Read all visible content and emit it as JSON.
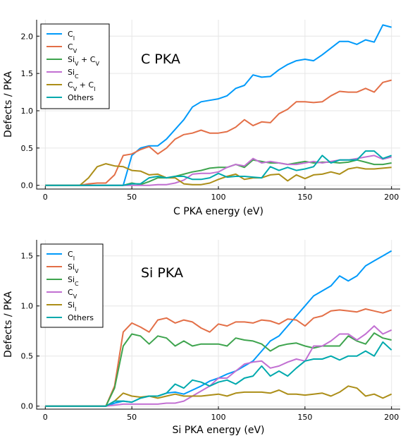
{
  "chart_data": [
    {
      "type": "line",
      "annotation": "C PKA",
      "xlabel": "C PKA energy (eV)",
      "ylabel": "Defects / PKA",
      "xlim": [
        -5,
        205
      ],
      "ylim": [
        -0.05,
        2.22
      ],
      "xticks": [
        0,
        50,
        100,
        150,
        200
      ],
      "yticks": [
        0.0,
        0.5,
        1.0,
        1.5,
        2.0
      ],
      "ytick_labels": [
        "0.0",
        "0.5",
        "1.0",
        "1.5",
        "2.0"
      ],
      "grid": true,
      "legend_position": "top-left",
      "x": [
        0,
        5,
        10,
        15,
        20,
        25,
        30,
        35,
        40,
        45,
        50,
        55,
        60,
        65,
        70,
        75,
        80,
        85,
        90,
        95,
        100,
        105,
        110,
        115,
        120,
        125,
        130,
        135,
        140,
        145,
        150,
        155,
        160,
        165,
        170,
        175,
        180,
        185,
        190,
        195,
        200
      ],
      "series": [
        {
          "name": "C",
          "sub": "I",
          "plus": "",
          "name2": "",
          "sub2": "",
          "color": "#009AFA",
          "values": [
            0,
            0,
            0,
            0,
            0,
            0,
            0,
            0,
            0,
            0,
            0.4,
            0.5,
            0.53,
            0.53,
            0.62,
            0.75,
            0.88,
            1.05,
            1.12,
            1.14,
            1.16,
            1.2,
            1.3,
            1.34,
            1.48,
            1.45,
            1.46,
            1.55,
            1.62,
            1.67,
            1.69,
            1.67,
            1.75,
            1.84,
            1.93,
            1.93,
            1.89,
            1.95,
            1.92,
            2.15,
            2.12
          ]
        },
        {
          "name": "C",
          "sub": "V",
          "plus": "",
          "name2": "",
          "sub2": "",
          "color": "#E36F47",
          "values": [
            0,
            0,
            0,
            0,
            0,
            0.02,
            0.03,
            0.03,
            0.14,
            0.4,
            0.42,
            0.48,
            0.52,
            0.42,
            0.5,
            0.62,
            0.68,
            0.7,
            0.74,
            0.7,
            0.7,
            0.72,
            0.78,
            0.88,
            0.8,
            0.85,
            0.84,
            0.96,
            1.02,
            1.12,
            1.12,
            1.11,
            1.12,
            1.2,
            1.26,
            1.25,
            1.25,
            1.3,
            1.25,
            1.38,
            1.41
          ]
        },
        {
          "name": "Si",
          "sub": "V",
          "plus": " + ",
          "name2": "C",
          "sub2": "V",
          "color": "#3EA44E",
          "values": [
            0,
            0,
            0,
            0,
            0,
            0,
            0,
            0,
            0,
            0,
            0.03,
            0.01,
            0.05,
            0.1,
            0.1,
            0.12,
            0.15,
            0.18,
            0.2,
            0.23,
            0.24,
            0.24,
            0.28,
            0.24,
            0.34,
            0.32,
            0.3,
            0.3,
            0.28,
            0.3,
            0.32,
            0.3,
            0.31,
            0.31,
            0.3,
            0.31,
            0.34,
            0.31,
            0.28,
            0.28,
            0.3
          ]
        },
        {
          "name": "Si",
          "sub": "C",
          "plus": "",
          "name2": "",
          "sub2": "",
          "color": "#C270D2",
          "values": [
            0,
            0,
            0,
            0,
            0,
            0,
            0,
            0,
            0,
            0,
            0,
            0,
            0,
            0.01,
            0.01,
            0.03,
            0.07,
            0.15,
            0.16,
            0.16,
            0.18,
            0.24,
            0.28,
            0.26,
            0.36,
            0.3,
            0.32,
            0.3,
            0.28,
            0.28,
            0.3,
            0.32,
            0.3,
            0.32,
            0.34,
            0.34,
            0.36,
            0.38,
            0.4,
            0.35,
            0.38
          ]
        },
        {
          "name": "C",
          "sub": "V",
          "plus": " + ",
          "name2": "C",
          "sub2": "I",
          "color": "#AC8E18",
          "values": [
            0,
            0,
            0,
            0,
            0,
            0.1,
            0.25,
            0.29,
            0.26,
            0.25,
            0.2,
            0.19,
            0.14,
            0.15,
            0.1,
            0.1,
            0.02,
            0.01,
            0.01,
            0.03,
            0.08,
            0.12,
            0.15,
            0.08,
            0.1,
            0.1,
            0.14,
            0.15,
            0.06,
            0.14,
            0.09,
            0.14,
            0.15,
            0.18,
            0.15,
            0.22,
            0.24,
            0.22,
            0.22,
            0.23,
            0.24
          ]
        },
        {
          "name": "Others",
          "sub": "",
          "plus": "",
          "name2": "",
          "sub2": "",
          "color": "#00A9AD",
          "values": [
            0,
            0,
            0,
            0,
            0,
            0,
            0,
            0,
            0,
            0,
            0.02,
            0.02,
            0.1,
            0.12,
            0.1,
            0.12,
            0.12,
            0.08,
            0.08,
            0.1,
            0.16,
            0.11,
            0.12,
            0.12,
            0.11,
            0.1,
            0.25,
            0.2,
            0.24,
            0.2,
            0.22,
            0.25,
            0.4,
            0.3,
            0.34,
            0.34,
            0.34,
            0.46,
            0.46,
            0.36,
            0.4
          ]
        }
      ]
    },
    {
      "type": "line",
      "annotation": "Si PKA",
      "xlabel": "Si PKA energy (eV)",
      "ylabel": "Defects / PKA",
      "xlim": [
        -5,
        205
      ],
      "ylim": [
        -0.03,
        1.66
      ],
      "xticks": [
        0,
        50,
        100,
        150,
        200
      ],
      "yticks": [
        0.0,
        0.5,
        1.0,
        1.5
      ],
      "ytick_labels": [
        "0.0",
        "0.5",
        "1.0",
        "1.5"
      ],
      "grid": true,
      "legend_position": "top-left",
      "x": [
        0,
        5,
        10,
        15,
        20,
        25,
        30,
        35,
        40,
        45,
        50,
        55,
        60,
        65,
        70,
        75,
        80,
        85,
        90,
        95,
        100,
        105,
        110,
        115,
        120,
        125,
        130,
        135,
        140,
        145,
        150,
        155,
        160,
        165,
        170,
        175,
        180,
        185,
        190,
        195,
        200
      ],
      "series": [
        {
          "name": "C",
          "sub": "I",
          "plus": "",
          "name2": "",
          "sub2": "",
          "color": "#009AFA",
          "values": [
            0,
            0,
            0,
            0,
            0,
            0,
            0,
            0,
            0.03,
            0.05,
            0.04,
            0.08,
            0.1,
            0.1,
            0.13,
            0.14,
            0.12,
            0.16,
            0.2,
            0.25,
            0.28,
            0.32,
            0.35,
            0.4,
            0.45,
            0.55,
            0.65,
            0.7,
            0.8,
            0.9,
            1.0,
            1.1,
            1.15,
            1.2,
            1.3,
            1.25,
            1.3,
            1.4,
            1.45,
            1.5,
            1.55
          ]
        },
        {
          "name": "Si",
          "sub": "V",
          "plus": "",
          "name2": "",
          "sub2": "",
          "color": "#E36F47",
          "values": [
            0,
            0,
            0,
            0,
            0,
            0,
            0,
            0,
            0.2,
            0.74,
            0.83,
            0.79,
            0.74,
            0.86,
            0.88,
            0.83,
            0.86,
            0.84,
            0.78,
            0.74,
            0.82,
            0.8,
            0.84,
            0.84,
            0.83,
            0.86,
            0.85,
            0.82,
            0.87,
            0.86,
            0.8,
            0.88,
            0.9,
            0.95,
            0.96,
            0.95,
            0.94,
            0.97,
            0.95,
            0.93,
            0.96
          ]
        },
        {
          "name": "Si",
          "sub": "C",
          "plus": "",
          "name2": "",
          "sub2": "",
          "color": "#3EA44E",
          "values": [
            0,
            0,
            0,
            0,
            0,
            0,
            0,
            0,
            0.18,
            0.6,
            0.72,
            0.7,
            0.62,
            0.7,
            0.68,
            0.6,
            0.65,
            0.6,
            0.62,
            0.62,
            0.62,
            0.6,
            0.68,
            0.66,
            0.65,
            0.62,
            0.55,
            0.6,
            0.62,
            0.63,
            0.6,
            0.58,
            0.6,
            0.6,
            0.6,
            0.7,
            0.65,
            0.62,
            0.73,
            0.68,
            0.66
          ]
        },
        {
          "name": "C",
          "sub": "V",
          "plus": "",
          "name2": "",
          "sub2": "",
          "color": "#C270D2",
          "values": [
            0,
            0,
            0,
            0,
            0,
            0,
            0,
            0,
            0.01,
            0.02,
            0.02,
            0.02,
            0.02,
            0.02,
            0.03,
            0.03,
            0.05,
            0.1,
            0.15,
            0.2,
            0.28,
            0.28,
            0.35,
            0.42,
            0.44,
            0.45,
            0.38,
            0.4,
            0.44,
            0.47,
            0.45,
            0.6,
            0.6,
            0.65,
            0.72,
            0.72,
            0.66,
            0.72,
            0.8,
            0.72,
            0.76
          ]
        },
        {
          "name": "Si",
          "sub": "I",
          "plus": "",
          "name2": "",
          "sub2": "",
          "color": "#AC8E18",
          "values": [
            0,
            0,
            0,
            0,
            0,
            0,
            0,
            0,
            0.05,
            0.13,
            0.1,
            0.09,
            0.1,
            0.08,
            0.1,
            0.12,
            0.1,
            0.1,
            0.1,
            0.11,
            0.12,
            0.1,
            0.13,
            0.14,
            0.14,
            0.14,
            0.13,
            0.16,
            0.12,
            0.12,
            0.11,
            0.12,
            0.13,
            0.1,
            0.14,
            0.2,
            0.18,
            0.1,
            0.12,
            0.08,
            0.12
          ]
        },
        {
          "name": "Others",
          "sub": "",
          "plus": "",
          "name2": "",
          "sub2": "",
          "color": "#00A9AD",
          "values": [
            0,
            0,
            0,
            0,
            0,
            0,
            0,
            0,
            0.05,
            0.05,
            0.04,
            0.08,
            0.1,
            0.1,
            0.13,
            0.22,
            0.18,
            0.26,
            0.24,
            0.2,
            0.24,
            0.26,
            0.22,
            0.28,
            0.3,
            0.4,
            0.3,
            0.35,
            0.3,
            0.38,
            0.45,
            0.47,
            0.47,
            0.5,
            0.46,
            0.5,
            0.5,
            0.55,
            0.5,
            0.64,
            0.56
          ]
        }
      ]
    }
  ]
}
